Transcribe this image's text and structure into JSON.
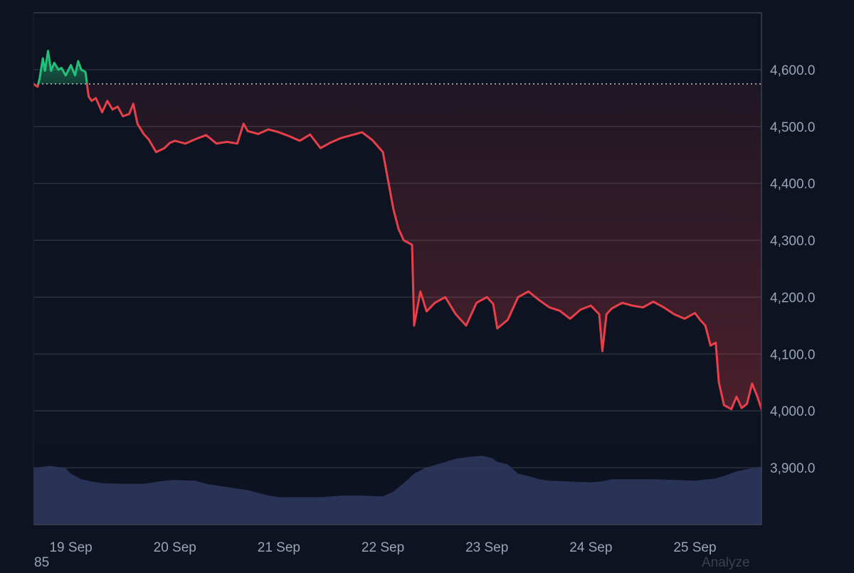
{
  "colors": {
    "background": "#0d1320",
    "grid": "#2a3140",
    "border": "#3a4252",
    "up": "#22c17a",
    "down": "#e8404a",
    "baseline": "#d9dee6",
    "volume": "#2f3b63"
  },
  "footer": {
    "left_text": "85",
    "right_text": "Analyze"
  },
  "chart_data": {
    "type": "line",
    "title": "",
    "xlabel": "",
    "ylabel": "",
    "y_axis_position": "right",
    "grid": true,
    "ylim": [
      3800,
      4700
    ],
    "yticks": [
      3900,
      4000,
      4100,
      4200,
      4300,
      4400,
      4500,
      4600
    ],
    "ytick_labels": [
      "3,900.0",
      "4,000.0",
      "4,100.0",
      "4,200.0",
      "4,300.0",
      "4,400.0",
      "4,500.0",
      "4,600.0"
    ],
    "xlim": [
      -0.36,
      6.64
    ],
    "xticks": [
      0,
      1,
      2,
      3,
      4,
      5,
      6
    ],
    "xtick_labels": [
      "19 Sep",
      "20 Sep",
      "21 Sep",
      "22 Sep",
      "23 Sep",
      "24 Sep",
      "25 Sep"
    ],
    "baseline_value": 4575,
    "series": [
      {
        "values": [
          [
            -0.36,
            4575
          ],
          [
            -0.32,
            4570
          ],
          [
            -0.3,
            4585
          ],
          [
            -0.27,
            4620
          ],
          [
            -0.25,
            4598
          ],
          [
            -0.22,
            4633
          ],
          [
            -0.19,
            4598
          ],
          [
            -0.16,
            4612
          ],
          [
            -0.12,
            4600
          ],
          [
            -0.09,
            4603
          ],
          [
            -0.05,
            4590
          ],
          [
            0.0,
            4608
          ],
          [
            0.04,
            4590
          ],
          [
            0.07,
            4615
          ],
          [
            0.1,
            4600
          ],
          [
            0.14,
            4596
          ],
          [
            0.17,
            4553
          ],
          [
            0.2,
            4545
          ],
          [
            0.24,
            4550
          ],
          [
            0.3,
            4525
          ],
          [
            0.35,
            4545
          ],
          [
            0.4,
            4530
          ],
          [
            0.45,
            4535
          ],
          [
            0.5,
            4518
          ],
          [
            0.56,
            4522
          ],
          [
            0.6,
            4540
          ],
          [
            0.64,
            4505
          ],
          [
            0.7,
            4487
          ],
          [
            0.75,
            4477
          ],
          [
            0.82,
            4455
          ],
          [
            0.9,
            4462
          ],
          [
            0.95,
            4471
          ],
          [
            1.0,
            4475
          ],
          [
            1.1,
            4470
          ],
          [
            1.2,
            4478
          ],
          [
            1.3,
            4485
          ],
          [
            1.4,
            4470
          ],
          [
            1.5,
            4473
          ],
          [
            1.6,
            4470
          ],
          [
            1.66,
            4505
          ],
          [
            1.7,
            4492
          ],
          [
            1.8,
            4487
          ],
          [
            1.9,
            4495
          ],
          [
            2.0,
            4490
          ],
          [
            2.1,
            4483
          ],
          [
            2.2,
            4475
          ],
          [
            2.3,
            4486
          ],
          [
            2.4,
            4462
          ],
          [
            2.5,
            4472
          ],
          [
            2.6,
            4480
          ],
          [
            2.7,
            4485
          ],
          [
            2.8,
            4490
          ],
          [
            2.9,
            4476
          ],
          [
            3.0,
            4455
          ],
          [
            3.1,
            4355
          ],
          [
            3.15,
            4320
          ],
          [
            3.2,
            4300
          ],
          [
            3.28,
            4292
          ],
          [
            3.3,
            4150
          ],
          [
            3.36,
            4210
          ],
          [
            3.42,
            4175
          ],
          [
            3.5,
            4190
          ],
          [
            3.6,
            4200
          ],
          [
            3.7,
            4170
          ],
          [
            3.8,
            4150
          ],
          [
            3.9,
            4190
          ],
          [
            4.0,
            4200
          ],
          [
            4.06,
            4188
          ],
          [
            4.1,
            4145
          ],
          [
            4.2,
            4160
          ],
          [
            4.3,
            4200
          ],
          [
            4.4,
            4210
          ],
          [
            4.5,
            4195
          ],
          [
            4.6,
            4182
          ],
          [
            4.7,
            4176
          ],
          [
            4.8,
            4162
          ],
          [
            4.9,
            4178
          ],
          [
            5.0,
            4185
          ],
          [
            5.08,
            4170
          ],
          [
            5.11,
            4105
          ],
          [
            5.15,
            4170
          ],
          [
            5.2,
            4180
          ],
          [
            5.3,
            4190
          ],
          [
            5.4,
            4185
          ],
          [
            5.5,
            4182
          ],
          [
            5.6,
            4192
          ],
          [
            5.7,
            4182
          ],
          [
            5.8,
            4170
          ],
          [
            5.9,
            4162
          ],
          [
            6.0,
            4172
          ],
          [
            6.05,
            4160
          ],
          [
            6.1,
            4150
          ],
          [
            6.15,
            4115
          ],
          [
            6.2,
            4120
          ],
          [
            6.23,
            4050
          ],
          [
            6.28,
            4010
          ],
          [
            6.35,
            4003
          ],
          [
            6.4,
            4025
          ],
          [
            6.45,
            4005
          ],
          [
            6.5,
            4012
          ],
          [
            6.55,
            4048
          ],
          [
            6.6,
            4025
          ],
          [
            6.64,
            4003
          ]
        ]
      }
    ],
    "volume_profile": [
      [
        -0.36,
        0.72
      ],
      [
        -0.2,
        0.75
      ],
      [
        -0.05,
        0.72
      ],
      [
        0.0,
        0.65
      ],
      [
        0.1,
        0.58
      ],
      [
        0.2,
        0.55
      ],
      [
        0.3,
        0.53
      ],
      [
        0.5,
        0.52
      ],
      [
        0.7,
        0.52
      ],
      [
        0.8,
        0.54
      ],
      [
        0.9,
        0.56
      ],
      [
        1.0,
        0.57
      ],
      [
        1.2,
        0.56
      ],
      [
        1.3,
        0.52
      ],
      [
        1.5,
        0.48
      ],
      [
        1.7,
        0.44
      ],
      [
        1.9,
        0.37
      ],
      [
        2.0,
        0.35
      ],
      [
        2.2,
        0.35
      ],
      [
        2.4,
        0.35
      ],
      [
        2.6,
        0.37
      ],
      [
        2.8,
        0.37
      ],
      [
        3.0,
        0.36
      ],
      [
        3.1,
        0.42
      ],
      [
        3.2,
        0.53
      ],
      [
        3.3,
        0.65
      ],
      [
        3.4,
        0.72
      ],
      [
        3.6,
        0.8
      ],
      [
        3.7,
        0.84
      ],
      [
        3.8,
        0.86
      ],
      [
        3.95,
        0.88
      ],
      [
        4.05,
        0.85
      ],
      [
        4.1,
        0.8
      ],
      [
        4.2,
        0.77
      ],
      [
        4.3,
        0.65
      ],
      [
        4.4,
        0.62
      ],
      [
        4.5,
        0.58
      ],
      [
        4.6,
        0.56
      ],
      [
        4.8,
        0.55
      ],
      [
        5.0,
        0.54
      ],
      [
        5.1,
        0.55
      ],
      [
        5.2,
        0.58
      ],
      [
        5.4,
        0.58
      ],
      [
        5.6,
        0.58
      ],
      [
        5.8,
        0.57
      ],
      [
        6.0,
        0.56
      ],
      [
        6.2,
        0.59
      ],
      [
        6.3,
        0.63
      ],
      [
        6.4,
        0.68
      ],
      [
        6.55,
        0.72
      ],
      [
        6.64,
        0.74
      ]
    ]
  }
}
